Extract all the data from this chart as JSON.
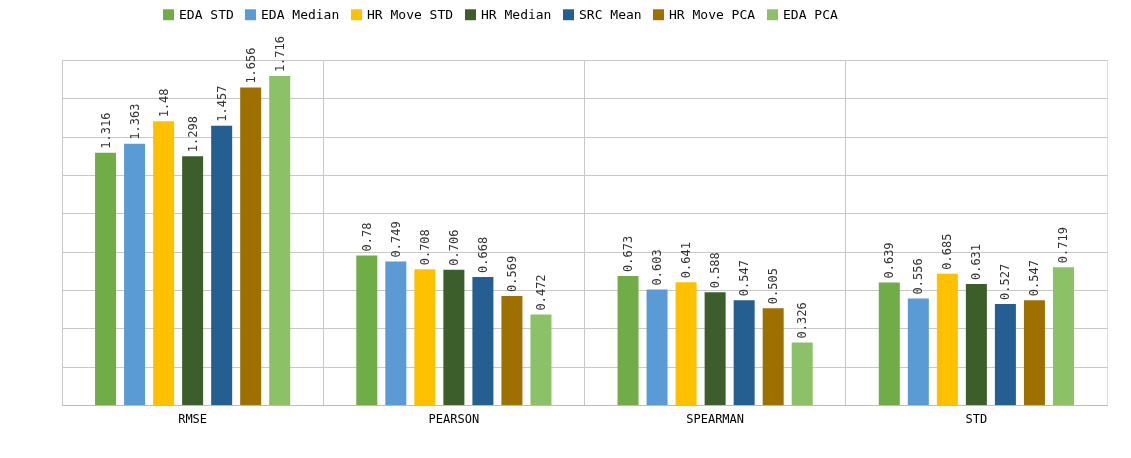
{
  "chart_data": {
    "type": "bar",
    "categories": [
      "RMSE",
      "PEARSON",
      "SPEARMAN",
      "STD"
    ],
    "series": [
      {
        "name": "EDA STD",
        "color": "#70ad47",
        "values": [
          1.316,
          0.78,
          0.673,
          0.639
        ]
      },
      {
        "name": "EDA Median",
        "color": "#5b9bd5",
        "values": [
          1.363,
          0.749,
          0.603,
          0.556
        ]
      },
      {
        "name": "HR Move STD",
        "color": "#ffc000",
        "values": [
          1.48,
          0.708,
          0.641,
          0.685
        ]
      },
      {
        "name": "HR Median",
        "color": "#3b5e2b",
        "values": [
          1.298,
          0.706,
          0.588,
          0.631
        ]
      },
      {
        "name": "SRC Mean",
        "color": "#255e91",
        "values": [
          1.457,
          0.668,
          0.547,
          0.527
        ]
      },
      {
        "name": "HR Move PCA",
        "color": "#9e7000",
        "values": [
          1.656,
          0.569,
          0.505,
          0.547
        ]
      },
      {
        "name": "EDA PCA",
        "color": "#8cc168",
        "values": [
          1.716,
          0.472,
          0.326,
          0.719
        ]
      }
    ],
    "tick_labels": "x",
    "grid": true,
    "legend": "top",
    "data_labels": true
  }
}
